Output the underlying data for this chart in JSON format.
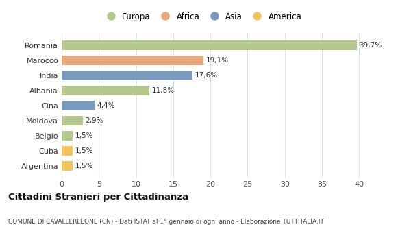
{
  "countries": [
    "Romania",
    "Marocco",
    "India",
    "Albania",
    "Cina",
    "Moldova",
    "Belgio",
    "Cuba",
    "Argentina"
  ],
  "values": [
    39.7,
    19.1,
    17.6,
    11.8,
    4.4,
    2.9,
    1.5,
    1.5,
    1.5
  ],
  "labels": [
    "39,7%",
    "19,1%",
    "17,6%",
    "11,8%",
    "4,4%",
    "2,9%",
    "1,5%",
    "1,5%",
    "1,5%"
  ],
  "continents": [
    "Europa",
    "Africa",
    "Asia",
    "Europa",
    "Asia",
    "Europa",
    "Europa",
    "America",
    "America"
  ],
  "continent_colors": {
    "Europa": "#b5c98e",
    "Africa": "#e8a87c",
    "Asia": "#7a9abf",
    "America": "#f0c45a"
  },
  "legend_order": [
    "Europa",
    "Africa",
    "Asia",
    "America"
  ],
  "xlim": [
    0,
    42
  ],
  "xticks": [
    0,
    5,
    10,
    15,
    20,
    25,
    30,
    35,
    40
  ],
  "title": "Cittadini Stranieri per Cittadinanza",
  "subtitle": "COMUNE DI CAVALLERLEONE (CN) - Dati ISTAT al 1° gennaio di ogni anno - Elaborazione TUTTITALIA.IT",
  "bg_color": "#ffffff",
  "grid_color": "#e0e0e0",
  "bar_height": 0.65
}
